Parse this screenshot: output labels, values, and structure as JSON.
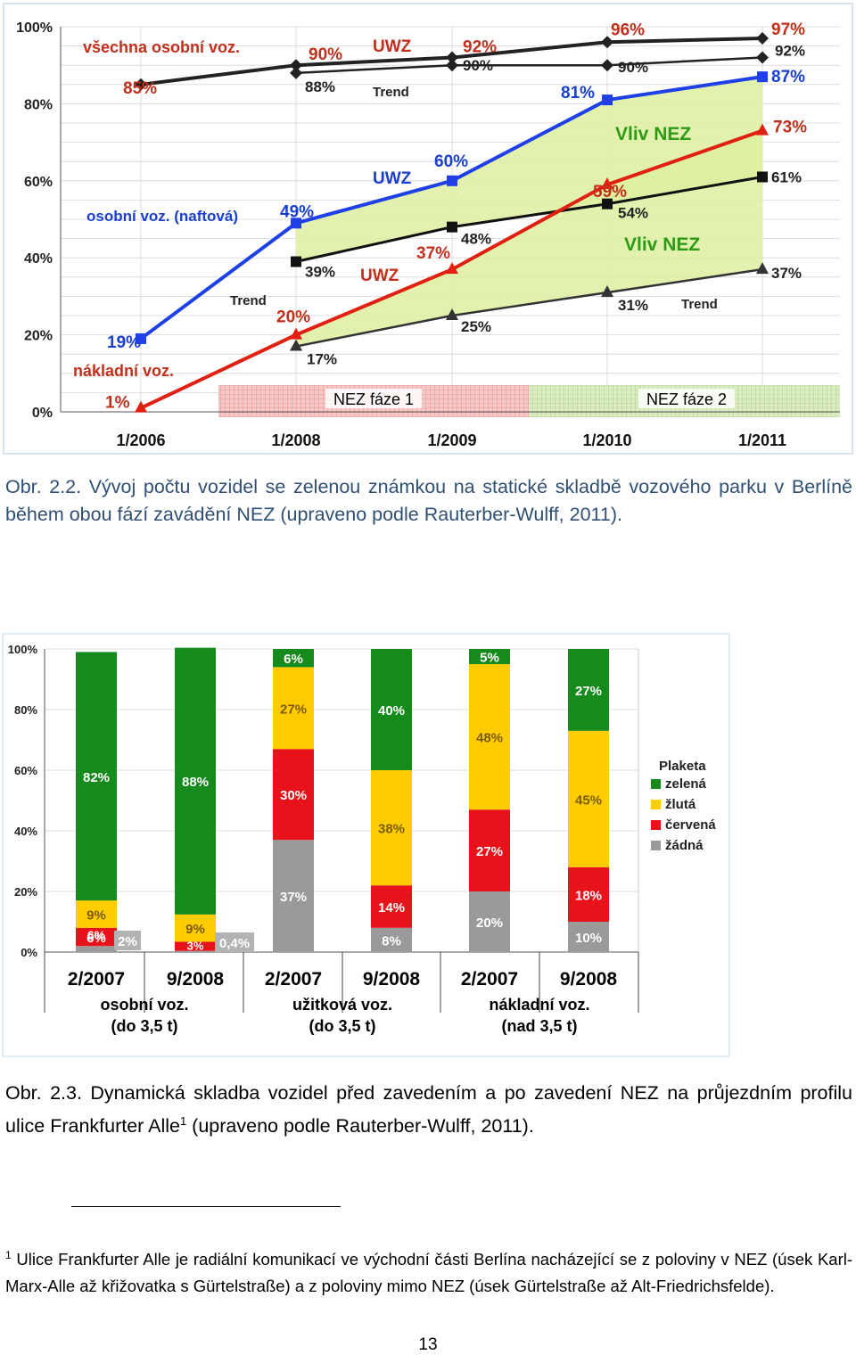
{
  "chart_data": [
    {
      "type": "line",
      "x": [
        "1/2006",
        "1/2008",
        "1/2009",
        "1/2010",
        "1/2011"
      ],
      "ylim": [
        0,
        100
      ],
      "y_ticks": [
        "0%",
        "20%",
        "40%",
        "60%",
        "80%",
        "100%"
      ],
      "grid": true,
      "series": [
        {
          "name": "všechna osobní voz.",
          "color": "#222222",
          "marker": "diamond",
          "x": [
            "1/2006",
            "1/2008",
            "1/2009",
            "1/2010",
            "1/2011"
          ],
          "values": [
            85,
            90,
            92,
            96,
            97
          ]
        },
        {
          "name": "Trend",
          "color": "#222222",
          "marker": "diamond",
          "x": [
            "1/2008",
            "1/2009",
            "1/2010",
            "1/2011"
          ],
          "values": [
            88,
            90,
            90,
            92
          ]
        },
        {
          "name": "osobní voz. (naftová)",
          "color": "#1e40e6",
          "marker": "square",
          "x": [
            "1/2006",
            "1/2008",
            "1/2009",
            "1/2010",
            "1/2011"
          ],
          "values": [
            19,
            49,
            60,
            81,
            87
          ]
        },
        {
          "name": "Trend",
          "color": "#111111",
          "marker": "square",
          "x": [
            "1/2008",
            "1/2009",
            "1/2010",
            "1/2011"
          ],
          "values": [
            39,
            48,
            54,
            61
          ]
        },
        {
          "name": "nákladní voz.",
          "color": "#e02010",
          "marker": "triangle",
          "x": [
            "1/2006",
            "1/2008",
            "1/2009",
            "1/2010",
            "1/2011"
          ],
          "values": [
            1,
            20,
            37,
            59,
            73
          ]
        },
        {
          "name": "Trend",
          "color": "#333333",
          "marker": "triangle",
          "x": [
            "1/2008",
            "1/2009",
            "1/2010",
            "1/2011"
          ],
          "values": [
            17,
            25,
            31,
            37
          ]
        }
      ],
      "annotations": {
        "uwz": "UWZ",
        "trend": "Trend",
        "vliv_nez": "Vliv NEZ",
        "phase1": "NEZ fáze 1",
        "phase2": "NEZ fáze 2"
      },
      "colors": {
        "all_cars": "#222222",
        "diesel": "#1e40e6",
        "trucks": "#e02010",
        "label_red": "#c0301c",
        "label_blue": "#1a3fd0",
        "label_green": "#2e9a16",
        "phase1": "#f6c8c8",
        "phase2": "#dbecc3",
        "band": "#ddf0a0"
      }
    },
    {
      "type": "bar",
      "stacked": true,
      "categories": [
        "2/2007",
        "9/2008",
        "2/2007",
        "9/2008",
        "2/2007",
        "9/2008"
      ],
      "groups": [
        {
          "label_line1": "osobní voz.",
          "label_line2": "(do 3,5 t)"
        },
        {
          "label_line1": "užitková voz.",
          "label_line2": "(do 3,5 t)"
        },
        {
          "label_line1": "nákladní voz.",
          "label_line2": "(nad 3,5 t)"
        }
      ],
      "ylim": [
        0,
        100
      ],
      "y_ticks": [
        "0%",
        "20%",
        "40%",
        "60%",
        "80%",
        "100%"
      ],
      "series": [
        {
          "name": "žádná",
          "color": "#9a9a9a",
          "values": [
            2,
            0.4,
            37,
            8,
            20,
            10
          ],
          "labels": [
            "2%",
            "0,4%",
            "37%",
            "8%",
            "20%",
            "10%"
          ]
        },
        {
          "name": "červená",
          "color": "#e8121a",
          "values": [
            6,
            3,
            30,
            14,
            27,
            18
          ],
          "labels": [
            "6%",
            "3%",
            "30%",
            "14%",
            "27%",
            "18%"
          ]
        },
        {
          "name": "žlutá",
          "color": "#ffcc00",
          "values": [
            9,
            9,
            27,
            38,
            48,
            45
          ],
          "labels": [
            "9%",
            "9%",
            "27%",
            "38%",
            "48%",
            "45%"
          ]
        },
        {
          "name": "zelená",
          "color": "#168a1c",
          "values": [
            82,
            88,
            6,
            40,
            5,
            27
          ],
          "labels": [
            "82%",
            "88%",
            "6%",
            "40%",
            "5%",
            "27%"
          ]
        }
      ],
      "legend": {
        "title": "Plaketa",
        "position": "right"
      }
    }
  ],
  "captions": {
    "fig1": "Obr. 2.2. Vývoj počtu vozidel se zelenou známkou na statické skladbě vozového parku v Berlíně během obou fází zavádění NEZ (upraveno podle Rauterber-Wulff, 2011).",
    "fig2_main": "Obr. 2.3. Dynamická skladba vozidel před zavedením a po zavedení NEZ na průjezdním profilu ulice Frankfurter Alle",
    "fig2_ref": "1",
    "fig2_tail": " (upraveno podle Rauterber-Wulff, 2011)."
  },
  "footnote": {
    "mark": "1",
    "text": " Ulice Frankfurter Alle je radiální komunikací ve východní části Berlína nacházející se z poloviny v NEZ (úsek Karl-Marx-Alle až křižovatka s Gürtelstraße) a z poloviny mimo NEZ (úsek Gürtelstraße až Alt-Friedrichsfelde)."
  },
  "page_number": "13"
}
